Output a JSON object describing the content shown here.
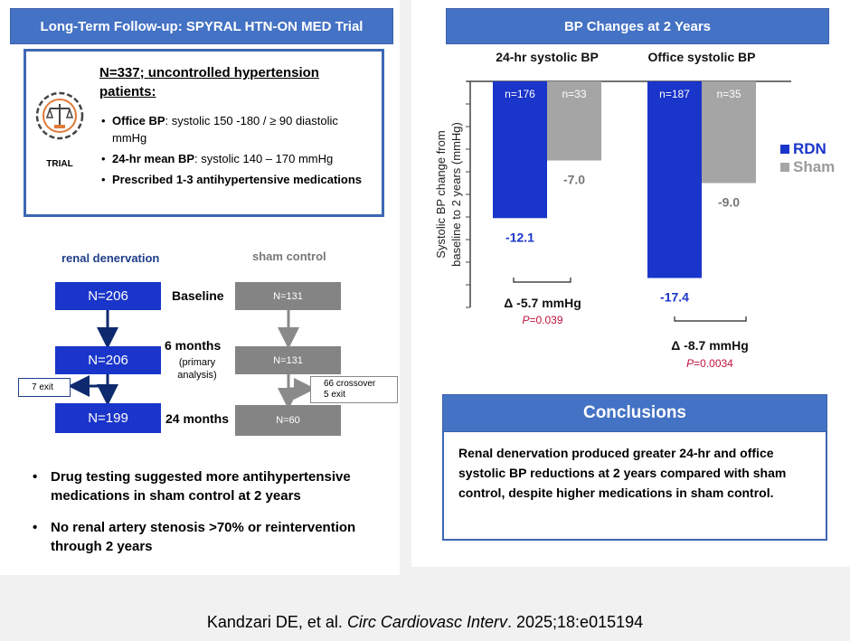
{
  "left": {
    "title": "Long-Term Follow-up: SPYRAL HTN-ON MED Trial",
    "trial_icon_label": "TRIAL",
    "criteria_heading": "N=337; uncontrolled hypertension patients:",
    "criteria": [
      {
        "bold": "Office BP",
        "rest": ": systolic 150 -180 / ≥ 90 diastolic mmHg"
      },
      {
        "bold": "24-hr mean BP",
        "rest": ": systolic 140 – 170 mmHg"
      },
      {
        "bold": "Prescribed 1-3 antihypertensive medications",
        "rest": ""
      }
    ],
    "flow": {
      "rdn_heading": "renal denervation",
      "sham_heading": "sham control",
      "timepoints": [
        {
          "label": "Baseline",
          "sub": "",
          "rdn": "N=206",
          "sham": "N=131"
        },
        {
          "label": "6 months",
          "sub": "(primary analysis)",
          "rdn": "N=206",
          "sham": "N=131"
        },
        {
          "label": "24 months",
          "sub": "",
          "rdn": "N=199",
          "sham": "N=60"
        }
      ],
      "rdn_exit": "7 exit",
      "sham_exit_line1": "66 crossover",
      "sham_exit_line2": "5 exit"
    },
    "notes": [
      "Drug testing suggested more antihypertensive medications in sham control at 2 years",
      "No renal artery stenosis >70% or reintervention through 2 years"
    ]
  },
  "right": {
    "title": "BP Changes at 2 Years",
    "conclusions_title": "Conclusions",
    "conclusions_text": "Renal denervation produced greater 24-hr and office systolic BP reductions at 2 years compared with sham control, despite higher medications in sham control."
  },
  "chart_data": {
    "type": "bar",
    "ylabel": "Systolic BP change from baseline to 2 years (mmHg)",
    "ylim": [
      -20,
      0
    ],
    "categories": [
      "24-hr systolic BP",
      "Office systolic BP"
    ],
    "series": [
      {
        "name": "RDN",
        "color": "#1a35c9",
        "values": [
          -12.1,
          -17.4
        ],
        "value_labels": [
          "-12.1",
          "-17.4"
        ],
        "n_labels": [
          "n=176",
          "n=187"
        ]
      },
      {
        "name": "Sham",
        "color": "#a5a5a5",
        "values": [
          -7.0,
          -9.0
        ],
        "value_labels": [
          "-7.0",
          "-9.0"
        ],
        "n_labels": [
          "n=33",
          "n=35"
        ]
      }
    ],
    "differences": [
      {
        "delta": "Δ -5.7 mmHg",
        "p_label": "P",
        "p_value": "=0.039"
      },
      {
        "delta": "Δ -8.7 mmHg",
        "p_label": "P",
        "p_value": "=0.0034"
      }
    ]
  },
  "citation": {
    "authors": "Kandzari DE, et al. ",
    "journal": "Circ Cardiovasc Interv",
    "rest": ". 2025;18:e015194"
  }
}
